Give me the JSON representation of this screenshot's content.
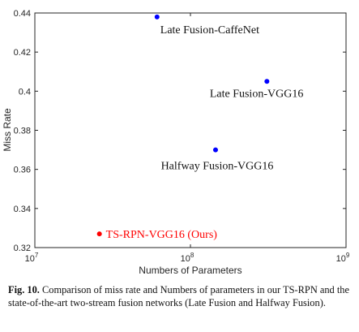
{
  "chart_data": {
    "type": "scatter",
    "xlabel": "Numbers of Parameters",
    "ylabel": "Miss Rate",
    "xscale": "log",
    "xlim": [
      10000000,
      1000000000
    ],
    "ylim": [
      0.32,
      0.44
    ],
    "x_ticks": [
      {
        "value": 10000000,
        "base": "10",
        "exp": "7"
      },
      {
        "value": 100000000,
        "base": "10",
        "exp": "8"
      },
      {
        "value": 1000000000,
        "base": "10",
        "exp": "9"
      }
    ],
    "y_ticks": [
      {
        "value": 0.32,
        "label": "0.32"
      },
      {
        "value": 0.34,
        "label": "0.34"
      },
      {
        "value": 0.36,
        "label": "0.36"
      },
      {
        "value": 0.38,
        "label": "0.38"
      },
      {
        "value": 0.4,
        "label": "0.4"
      },
      {
        "value": 0.42,
        "label": "0.42"
      },
      {
        "value": 0.44,
        "label": "0.44"
      }
    ],
    "points": [
      {
        "label": "Late Fusion-CaffeNet",
        "x": 61000000,
        "y": 0.438,
        "color": "#0000ff",
        "label_pos": "below-right"
      },
      {
        "label": "Late Fusion-VGG16",
        "x": 310000000,
        "y": 0.405,
        "color": "#0000ff",
        "label_pos": "below-left"
      },
      {
        "label": "Halfway Fusion-VGG16",
        "x": 145000000,
        "y": 0.37,
        "color": "#0000ff",
        "label_pos": "below"
      },
      {
        "label": "TS-RPN-VGG16 (Ours)",
        "x": 26000000,
        "y": 0.327,
        "color": "#ff0000",
        "label_pos": "right"
      }
    ],
    "grid": false,
    "legend": "none"
  },
  "caption": {
    "fig_number": "Fig. 10.",
    "text": "Comparison of miss rate and Numbers of parameters in our TS-RPN and the state-of-the-art two-stream fusion networks (Late Fusion and Halfway Fusion)."
  }
}
